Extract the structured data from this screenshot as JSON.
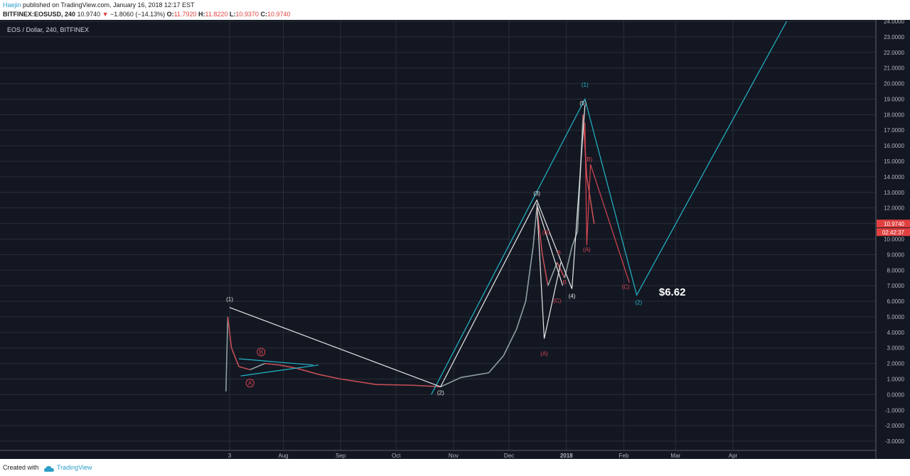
{
  "header": {
    "author": "Haejin",
    "published": "published on TradingView.com, January 16, 2018 12:17 EST",
    "symbol": "BITFINEX:EOSUSD, 240",
    "last": "10.9740",
    "change": "−1.8060 (−14.13%)",
    "o_label": "O:",
    "o": "11.7920",
    "h_label": "H:",
    "h": "11.8220",
    "l_label": "L:",
    "l": "10.9370",
    "c_label": "C:",
    "c": "10.9740"
  },
  "footer": {
    "created_with": "Created with",
    "brand": "TradingView"
  },
  "colors": {
    "bg": "#131722",
    "grid": "#2a2e39",
    "candle_up": "#8fa0a0",
    "candle_down": "#c44e55",
    "wave_white": "#e8e8e8",
    "wave_cyan": "#22b7c9",
    "wave_red": "#d64550",
    "price_tag": "#e04040"
  },
  "chart_data": {
    "type": "candlestick",
    "title": "EOS / Dollar, 240, BITFINEX",
    "ylim": [
      -3.5,
      24
    ],
    "y_ticks": [
      "24.0000",
      "23.0000",
      "22.0000",
      "21.0000",
      "20.0000",
      "19.0000",
      "18.0000",
      "17.0000",
      "16.0000",
      "15.0000",
      "14.0000",
      "13.0000",
      "12.0000",
      "11.0000",
      "10.0000",
      "9.0000",
      "8.0000",
      "7.0000",
      "6.0000",
      "5.0000",
      "4.0000",
      "3.0000",
      "2.0000",
      "1.0000",
      "0.0000",
      "-1.0000",
      "-2.0000",
      "-3.0000"
    ],
    "x_ticks": [
      {
        "label": "3",
        "date": "2017-07-03"
      },
      {
        "label": "Aug",
        "date": "2017-08-01"
      },
      {
        "label": "Sep",
        "date": "2017-09-01"
      },
      {
        "label": "Oct",
        "date": "2017-10-01"
      },
      {
        "label": "Nov",
        "date": "2017-11-01"
      },
      {
        "label": "Dec",
        "date": "2017-12-01"
      },
      {
        "label": "2018",
        "date": "2018-01-01"
      },
      {
        "label": "Feb",
        "date": "2018-02-01"
      },
      {
        "label": "Mar",
        "date": "2018-03-01"
      },
      {
        "label": "Apr",
        "date": "2018-04-01"
      }
    ],
    "price_path": [
      {
        "date": "2017-07-01",
        "price": 0.2
      },
      {
        "date": "2017-07-02",
        "price": 5.0
      },
      {
        "date": "2017-07-04",
        "price": 3.0
      },
      {
        "date": "2017-07-08",
        "price": 1.8
      },
      {
        "date": "2017-07-14",
        "price": 1.6
      },
      {
        "date": "2017-07-22",
        "price": 2.0
      },
      {
        "date": "2017-07-30",
        "price": 1.9
      },
      {
        "date": "2017-08-08",
        "price": 1.7
      },
      {
        "date": "2017-08-20",
        "price": 1.3
      },
      {
        "date": "2017-09-01",
        "price": 1.0
      },
      {
        "date": "2017-09-20",
        "price": 0.65
      },
      {
        "date": "2017-10-10",
        "price": 0.6
      },
      {
        "date": "2017-10-25",
        "price": 0.5
      },
      {
        "date": "2017-11-05",
        "price": 1.1
      },
      {
        "date": "2017-11-20",
        "price": 1.4
      },
      {
        "date": "2017-11-28",
        "price": 2.5
      },
      {
        "date": "2017-12-05",
        "price": 4.2
      },
      {
        "date": "2017-12-10",
        "price": 6.0
      },
      {
        "date": "2017-12-14",
        "price": 9.5
      },
      {
        "date": "2017-12-16",
        "price": 12.0
      },
      {
        "date": "2017-12-19",
        "price": 9.0
      },
      {
        "date": "2017-12-22",
        "price": 7.0
      },
      {
        "date": "2017-12-27",
        "price": 8.5
      },
      {
        "date": "2017-12-31",
        "price": 7.5
      },
      {
        "date": "2018-01-04",
        "price": 9.5
      },
      {
        "date": "2018-01-07",
        "price": 10.5
      },
      {
        "date": "2018-01-10",
        "price": 18.0
      },
      {
        "date": "2018-01-12",
        "price": 14.0
      },
      {
        "date": "2018-01-14",
        "price": 12.5
      },
      {
        "date": "2018-01-16",
        "price": 10.97
      }
    ],
    "price_labels": {
      "last": "10.9740",
      "countdown": "02:42:37"
    },
    "wave_labels": [
      {
        "text": "(1)",
        "date": "2017-07-03",
        "price": 6.0,
        "color": "white"
      },
      {
        "text": "(2)",
        "date": "2017-10-25",
        "price": 0.0,
        "color": "white"
      },
      {
        "text": "(3)",
        "date": "2017-12-16",
        "price": 12.8,
        "color": "white"
      },
      {
        "text": "(4)",
        "date": "2018-01-04",
        "price": 6.2,
        "color": "white"
      },
      {
        "text": "(5)",
        "date": "2018-01-10",
        "price": 18.6,
        "color": "white"
      },
      {
        "text": "(1)",
        "date": "2018-01-11",
        "price": 19.8,
        "color": "cyan"
      },
      {
        "text": "(2)",
        "date": "2018-02-09",
        "price": 5.8,
        "color": "cyan"
      },
      {
        "text": "(A)",
        "date": "2018-01-12",
        "price": 9.2,
        "color": "red"
      },
      {
        "text": "(B)",
        "date": "2018-01-13",
        "price": 15.0,
        "color": "red"
      },
      {
        "text": "(C)",
        "date": "2018-02-02",
        "price": 6.8,
        "color": "red"
      },
      {
        "text": "(A)",
        "date": "2017-12-20",
        "price": 2.5,
        "color": "red"
      },
      {
        "text": "(B)",
        "date": "2017-12-21",
        "price": 10.3,
        "color": "red"
      },
      {
        "text": "(C)",
        "date": "2017-12-27",
        "price": 5.9,
        "color": "red"
      },
      {
        "text": "B",
        "date": "2017-12-28",
        "price": 9.0,
        "color": "red"
      },
      {
        "text": "B",
        "date": "2017-12-31",
        "price": 7.1,
        "color": "red"
      },
      {
        "text": "A",
        "date": "2017-07-14",
        "price": 0.6,
        "color": "red-circle"
      },
      {
        "text": "B",
        "date": "2017-07-20",
        "price": 2.6,
        "color": "red-circle"
      }
    ],
    "annotation": {
      "text": "$6.62",
      "date": "2018-02-20",
      "price": 6.6
    },
    "wave_lines": [
      {
        "color": "cyan",
        "points": [
          {
            "date": "2017-10-20",
            "price": 0.0
          },
          {
            "date": "2018-01-11",
            "price": 19.0
          },
          {
            "date": "2018-02-08",
            "price": 6.4
          },
          {
            "date": "2018-04-30",
            "price": 24.0
          }
        ]
      },
      {
        "color": "white",
        "points": [
          {
            "date": "2017-07-03",
            "price": 5.6
          },
          {
            "date": "2017-10-25",
            "price": 0.5
          },
          {
            "date": "2017-12-16",
            "price": 12.5
          },
          {
            "date": "2018-01-04",
            "price": 6.8
          },
          {
            "date": "2018-01-11",
            "price": 18.6
          }
        ]
      },
      {
        "color": "white",
        "points": [
          {
            "date": "2017-12-16",
            "price": 12.3
          },
          {
            "date": "2017-12-20",
            "price": 3.6
          },
          {
            "date": "2017-12-29",
            "price": 8.5
          }
        ]
      },
      {
        "color": "white",
        "points": [
          {
            "date": "2017-12-16",
            "price": 12.2
          },
          {
            "date": "2017-12-30",
            "price": 7.0
          }
        ]
      },
      {
        "color": "red",
        "points": [
          {
            "date": "2018-01-11",
            "price": 17.5
          },
          {
            "date": "2018-01-12",
            "price": 9.6
          },
          {
            "date": "2018-01-14",
            "price": 14.8
          },
          {
            "date": "2018-02-04",
            "price": 7.2
          }
        ]
      },
      {
        "color": "cyan",
        "points": [
          {
            "date": "2017-07-08",
            "price": 2.3
          },
          {
            "date": "2017-08-17",
            "price": 1.9
          }
        ]
      },
      {
        "color": "cyan",
        "points": [
          {
            "date": "2017-07-09",
            "price": 1.2
          },
          {
            "date": "2017-08-20",
            "price": 1.9
          }
        ]
      }
    ]
  }
}
